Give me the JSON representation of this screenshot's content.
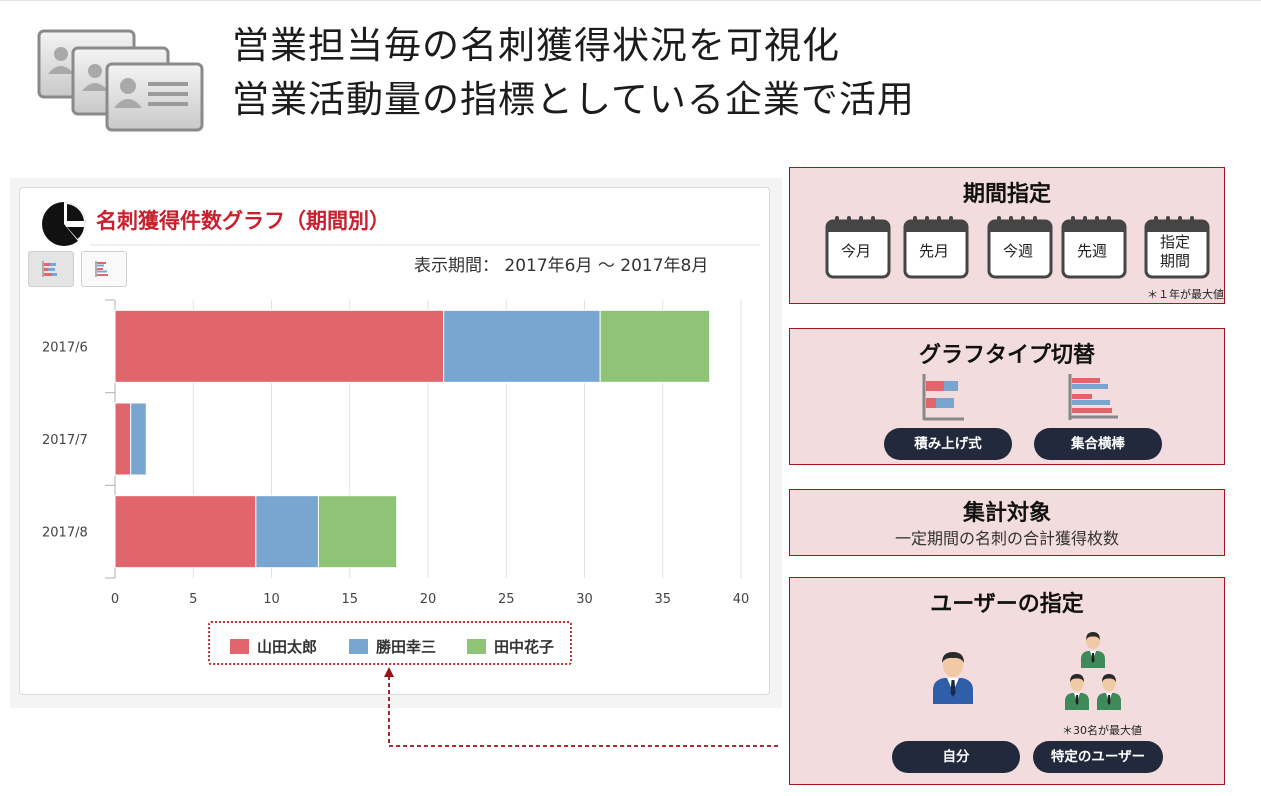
{
  "header": {
    "line1": "営業担当毎の名刺獲得状況を可視化",
    "line2": "営業活動量の指標としている企業で活用",
    "icon": "business-cards-icon"
  },
  "chart_panel": {
    "title": "名刺獲得件数グラフ（期間別）",
    "period_label": "表示期間： 2017年6月 〜 2017年8月",
    "toggle_buttons": [
      "stacked-bar-icon",
      "grouped-bar-icon"
    ]
  },
  "chart_data": {
    "type": "bar",
    "orientation": "horizontal",
    "stacked": true,
    "categories": [
      "2017/6",
      "2017/7",
      "2017/8"
    ],
    "series": [
      {
        "name": "山田太郎",
        "values": [
          21,
          1,
          9
        ],
        "color": "#e0666b"
      },
      {
        "name": "勝田幸三",
        "values": [
          10,
          1,
          4
        ],
        "color": "#78a6d0"
      },
      {
        "name": "田中花子",
        "values": [
          7,
          0,
          5
        ],
        "color": "#8fc477"
      }
    ],
    "xlim": [
      0,
      40
    ],
    "xticks": [
      "0",
      "5",
      "10",
      "15",
      "20",
      "25",
      "30",
      "35",
      "40"
    ],
    "grid": true,
    "legend": "bottom-center"
  },
  "panels": {
    "period": {
      "title": "期間指定",
      "buttons": [
        "今月",
        "先月",
        "今週",
        "先週"
      ],
      "custom_line1": "指定",
      "custom_line2": "期間",
      "note": "＊１年が最大値"
    },
    "graph_type": {
      "title": "グラフタイプ切替",
      "stacked_label": "積み上げ式",
      "grouped_label": "集合横棒"
    },
    "aggregation": {
      "title": "集計対象",
      "description": "一定期間の名刺の合計獲得枚数"
    },
    "user": {
      "title": "ユーザーの指定",
      "self_label": "自分",
      "specific_label": "特定のユーザー",
      "note": "＊30名が最大値"
    }
  },
  "colors": {
    "accent_red": "#c8202e",
    "panel_bg": "#f2dcde",
    "panel_border": "#a4151d",
    "pill_bg": "#22293c"
  }
}
